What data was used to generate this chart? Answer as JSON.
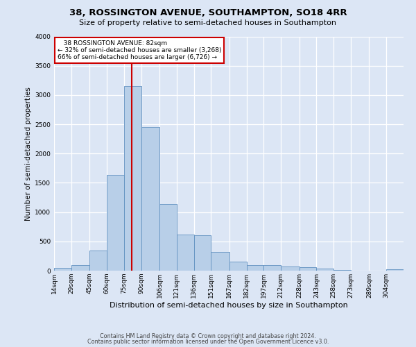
{
  "title1": "38, ROSSINGTON AVENUE, SOUTHAMPTON, SO18 4RR",
  "title2": "Size of property relative to semi-detached houses in Southampton",
  "xlabel": "Distribution of semi-detached houses by size in Southampton",
  "ylabel": "Number of semi-detached properties",
  "footer1": "Contains HM Land Registry data © Crown copyright and database right 2024.",
  "footer2": "Contains public sector information licensed under the Open Government Licence v3.0.",
  "property_size": 82,
  "annotation_line1": "   38 ROSSINGTON AVENUE: 82sqm",
  "annotation_line2": "← 32% of semi-detached houses are smaller (3,268)",
  "annotation_line3": "66% of semi-detached houses are larger (6,726) →",
  "bar_color": "#b8cfe8",
  "bar_edge_color": "#6090c0",
  "red_line_color": "#cc0000",
  "background_color": "#dce6f5",
  "grid_color": "#ffffff",
  "bins": [
    14,
    29,
    45,
    60,
    75,
    90,
    106,
    121,
    136,
    151,
    167,
    182,
    197,
    212,
    228,
    243,
    258,
    273,
    289,
    304,
    319
  ],
  "counts": [
    50,
    100,
    340,
    1640,
    3150,
    2450,
    1140,
    620,
    610,
    320,
    155,
    100,
    95,
    70,
    58,
    38,
    10,
    5,
    5,
    28
  ],
  "ylim": [
    0,
    4000
  ],
  "yticks": [
    0,
    500,
    1000,
    1500,
    2000,
    2500,
    3000,
    3500,
    4000
  ],
  "annotation_box_color": "#ffffff",
  "annotation_box_edge": "#cc0000",
  "title1_fontsize": 9.5,
  "title2_fontsize": 8.0,
  "ylabel_fontsize": 7.5,
  "xlabel_fontsize": 8.0,
  "tick_fontsize": 6.5,
  "footer_fontsize": 5.8
}
